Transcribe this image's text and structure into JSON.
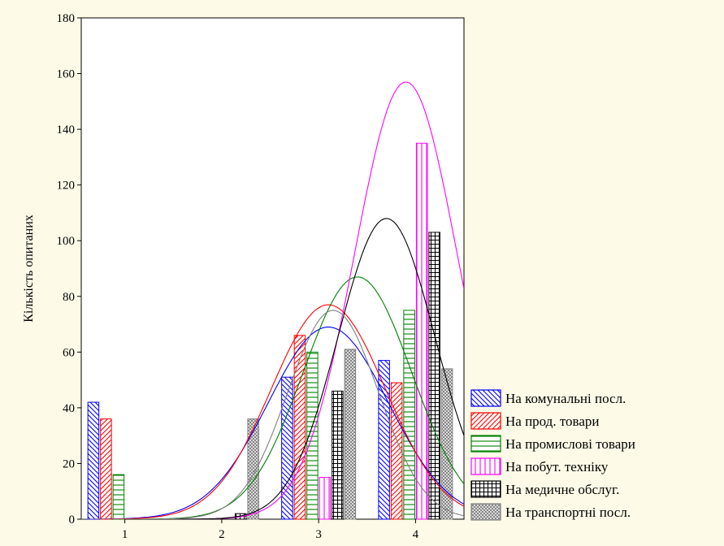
{
  "chart_data": {
    "type": "bar",
    "title": "",
    "xlabel": "",
    "ylabel": "Кількість опитаних",
    "xlim": [
      0.55,
      4.5
    ],
    "ylim": [
      0,
      180
    ],
    "x_ticks": [
      "1",
      "2",
      "3",
      "4"
    ],
    "y_ticks": [
      "0",
      "20",
      "40",
      "60",
      "80",
      "100",
      "120",
      "140",
      "160",
      "180"
    ],
    "grid": false,
    "legend_position": "bottom-right, outside plot",
    "series": [
      {
        "name": "На комунальні посл.",
        "color": "#0000ff",
        "pattern": "diag-down",
        "values": [
          42,
          0,
          51,
          57
        ],
        "fit_peak_x": 3.1,
        "fit_peak_y": 69
      },
      {
        "name": "На прод. товари",
        "color": "#ff0000",
        "pattern": "diag-up",
        "values": [
          36,
          0,
          66,
          49
        ],
        "fit_peak_x": 3.1,
        "fit_peak_y": 77
      },
      {
        "name": "На промислові товари",
        "color": "#008000",
        "pattern": "horizontal",
        "values": [
          16,
          0,
          60,
          75
        ],
        "fit_peak_x": 3.4,
        "fit_peak_y": 87
      },
      {
        "name": "На побут. техніку",
        "color": "#ff00ff",
        "pattern": "vertical",
        "values": [
          0,
          0,
          15,
          135
        ],
        "fit_peak_x": 3.9,
        "fit_peak_y": 157
      },
      {
        "name": "На медичне обслуг.",
        "color": "#000000",
        "pattern": "grid",
        "values": [
          0,
          2,
          46,
          103
        ],
        "fit_peak_x": 3.7,
        "fit_peak_y": 108
      },
      {
        "name": "На транспортні посл.",
        "color": "#808080",
        "pattern": "crosshatch",
        "values": [
          0,
          36,
          61,
          54
        ],
        "fit_peak_x": 3.15,
        "fit_peak_y": 75
      }
    ]
  }
}
